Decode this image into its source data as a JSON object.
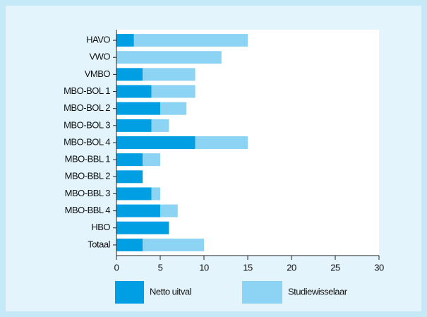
{
  "chart_data": {
    "type": "stacked_barh",
    "categories": [
      "HAVO",
      "VWO",
      "VMBO",
      "MBO-BOL 1",
      "MBO-BOL 2",
      "MBO-BOL 3",
      "MBO-BOL 4",
      "MBO-BBL 1",
      "MBO-BBL 2",
      "MBO-BBL 3",
      "MBO-BBL 4",
      "HBO",
      "Totaal"
    ],
    "series": [
      {
        "name": "Netto uitval",
        "color": "#009fe3",
        "values": [
          2,
          0,
          3,
          4,
          5,
          4,
          9,
          3,
          3,
          4,
          5,
          6,
          3
        ]
      },
      {
        "name": "Studiewisselaar",
        "color": "#8dd3f3",
        "values": [
          13,
          12,
          6,
          5,
          3,
          2,
          6,
          2,
          0,
          1,
          2,
          0,
          7
        ]
      }
    ],
    "xlim": [
      0,
      30
    ],
    "xticks": [
      0,
      5,
      10,
      15,
      20,
      25,
      30
    ]
  }
}
